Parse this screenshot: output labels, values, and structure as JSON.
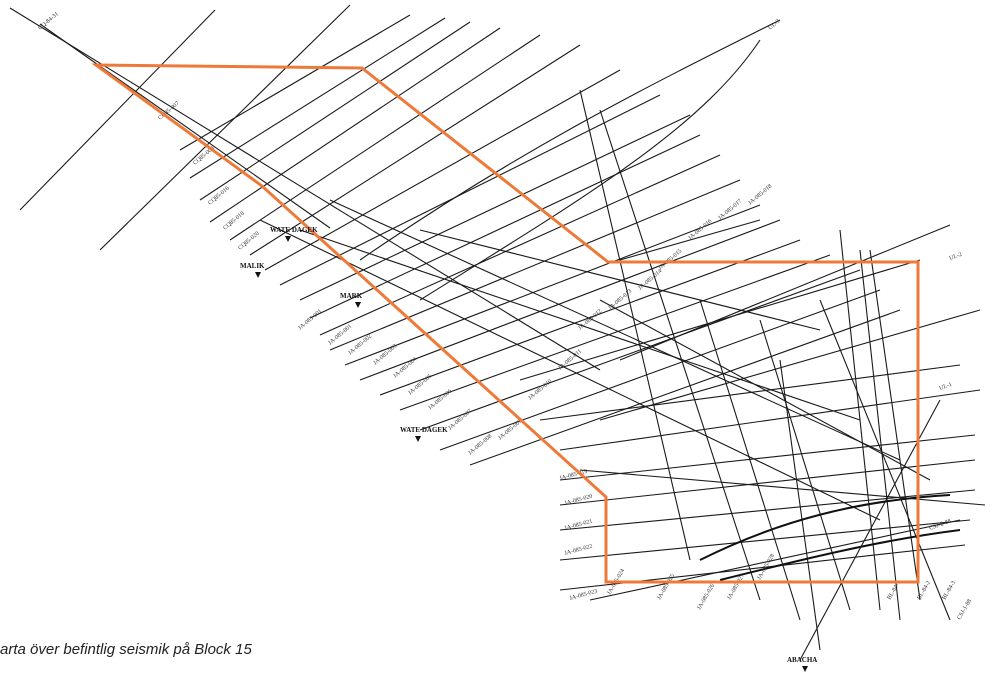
{
  "caption": "arta över befintlig seismik på Block 15",
  "colors": {
    "block_outline": "#ee7a3a",
    "lines": "#1a1a1a"
  },
  "places": [
    "MALIK",
    "MARK",
    "WATE DAGEK",
    "WATE DAGEK",
    "ABACHA"
  ],
  "line_labels": [
    "CQ-84-31",
    "CQ85-007",
    "CQ85-008",
    "CQ85-016",
    "CQ85-018",
    "CQ85-020",
    "JA-083-001",
    "JA-085-001",
    "JA-085-002",
    "JA-085-003",
    "JA-085-004",
    "JA-085-005",
    "JA-085-006",
    "JA-085-007",
    "JA-085-008",
    "JA-085-009",
    "JA-085-010",
    "JA-085-011",
    "JA-085-012",
    "JA-085-013",
    "JA-085-014",
    "JA-085-015",
    "JA-085-016",
    "JA-085-017",
    "JA-085-018",
    "JA-085-019",
    "JA-085-020",
    "JA-085-021",
    "JA-085-022",
    "JA-085-023",
    "JA-085-024",
    "JA-085-025",
    "JA-085-026",
    "JA-085-027",
    "JA-085-028",
    "BL-84-1",
    "BL-84-2",
    "BL-84-3",
    "CSJ-1-88",
    "CSJ-2-88",
    "UL-1",
    "UL-2",
    "UL-3"
  ]
}
